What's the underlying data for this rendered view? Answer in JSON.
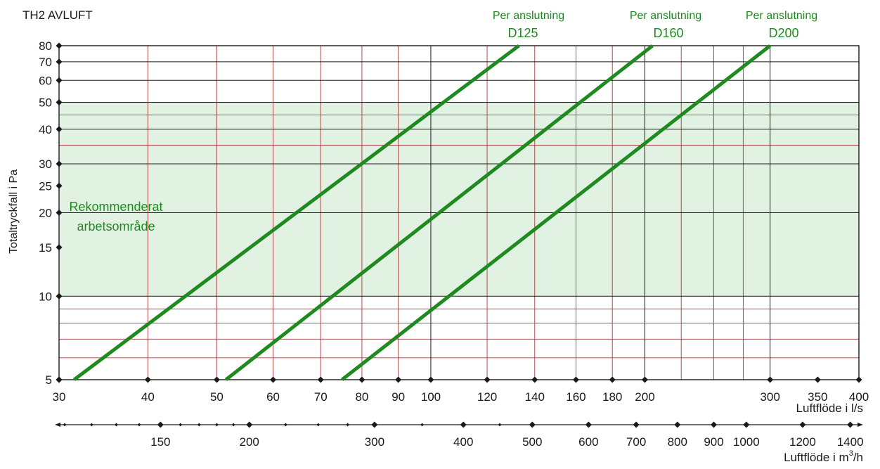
{
  "chart_data": {
    "type": "line",
    "title": "TH2 AVLUFT",
    "ylabel": "Totaltryckfall i Pa",
    "xlabel": "Luftflöde i l/s",
    "x2label_prefix": "Luftflöde i m",
    "x2label_sup": "3",
    "x2label_suffix": "/h",
    "x_scale": "log",
    "y_scale": "log",
    "xlim": [
      30,
      400
    ],
    "ylim": [
      5,
      80
    ],
    "grid": true,
    "recommended_band": {
      "label_line1": "Rekommenderat",
      "label_line2": "arbetsområde",
      "ymin": 10,
      "ymax": 50,
      "color": "#e2f2e2"
    },
    "colors": {
      "curve": "#1f8a1f",
      "grid_major": "#1a1a1a",
      "grid_minor": "#a33a3a",
      "band": "#e2f2e2"
    },
    "y_ticks": [
      {
        "value": 5,
        "label": "5"
      },
      {
        "value": 10,
        "label": "10"
      },
      {
        "value": 15,
        "label": "15"
      },
      {
        "value": 20,
        "label": "20"
      },
      {
        "value": 25,
        "label": "25"
      },
      {
        "value": 30,
        "label": "30"
      },
      {
        "value": 40,
        "label": "40"
      },
      {
        "value": 50,
        "label": "50"
      },
      {
        "value": 60,
        "label": "60"
      },
      {
        "value": 70,
        "label": "70"
      },
      {
        "value": 80,
        "label": "80"
      }
    ],
    "y_minor_grid": [
      6,
      7,
      8,
      9,
      35,
      45
    ],
    "y_major_grid": [
      10,
      20,
      30,
      40,
      50,
      60,
      70,
      80
    ],
    "x_ticks": [
      {
        "value": 30,
        "label": "30"
      },
      {
        "value": 40,
        "label": "40"
      },
      {
        "value": 50,
        "label": "50"
      },
      {
        "value": 60,
        "label": "60"
      },
      {
        "value": 70,
        "label": "70"
      },
      {
        "value": 80,
        "label": "80"
      },
      {
        "value": 90,
        "label": "90"
      },
      {
        "value": 100,
        "label": "100"
      },
      {
        "value": 120,
        "label": "120"
      },
      {
        "value": 140,
        "label": "140"
      },
      {
        "value": 160,
        "label": "160"
      },
      {
        "value": 180,
        "label": "180"
      },
      {
        "value": 200,
        "label": "200"
      },
      {
        "value": 300,
        "label": "300"
      },
      {
        "value": 350,
        "label": "350"
      },
      {
        "value": 400,
        "label": "400"
      }
    ],
    "x_minor_grid": [
      40,
      50,
      60,
      70,
      80,
      90,
      120,
      140,
      160,
      180,
      225,
      250,
      275
    ],
    "x_major_grid": [
      100,
      200,
      300
    ],
    "x2_ticks": [
      {
        "value": 150,
        "label": "150"
      },
      {
        "value": 200,
        "label": "200"
      },
      {
        "value": 300,
        "label": "300"
      },
      {
        "value": 400,
        "label": "400"
      },
      {
        "value": 500,
        "label": "500"
      },
      {
        "value": 600,
        "label": "600"
      },
      {
        "value": 700,
        "label": "700"
      },
      {
        "value": 800,
        "label": "800"
      },
      {
        "value": 900,
        "label": "900"
      },
      {
        "value": 1000,
        "label": "1000"
      },
      {
        "value": 1200,
        "label": "1200"
      },
      {
        "value": 1400,
        "label": "1400"
      }
    ],
    "x2_minor_ticks": [
      110,
      120,
      130,
      140,
      160,
      170,
      180,
      190,
      225,
      250,
      275,
      350,
      450
    ],
    "series": [
      {
        "name": "D125",
        "label_top": "Per anslutning",
        "label_bottom": "D125",
        "x": [
          31.5,
          133
        ],
        "y": [
          5,
          80
        ]
      },
      {
        "name": "D160",
        "label_top": "Per anslutning",
        "label_bottom": "D160",
        "x": [
          51.5,
          205
        ],
        "y": [
          5,
          80
        ]
      },
      {
        "name": "D200",
        "label_top": "Per anslutning",
        "label_bottom": "D200",
        "x": [
          75,
          300
        ],
        "y": [
          5,
          80
        ]
      }
    ]
  }
}
